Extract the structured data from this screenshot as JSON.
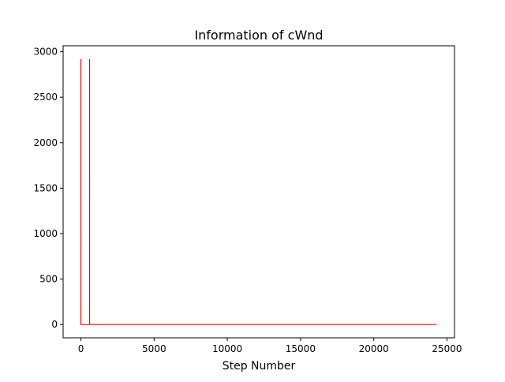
{
  "chart_data": {
    "type": "line",
    "title": "Information of cWnd",
    "xlabel": "Step Number",
    "ylabel": "",
    "xlim": [
      -1215,
      25515
    ],
    "ylim": [
      -146,
      3066
    ],
    "xticks": [
      0,
      5000,
      10000,
      15000,
      20000,
      25000
    ],
    "yticks": [
      0,
      500,
      1000,
      1500,
      2000,
      2500,
      3000
    ],
    "grid": false,
    "legend": "none",
    "series": [
      {
        "color": "#ff0000",
        "x": [
          0,
          0,
          1,
          590,
          591,
          592,
          593,
          594,
          595,
          24300
        ],
        "y": [
          2920,
          2920,
          0,
          0,
          2920,
          0,
          2920,
          0,
          0,
          0
        ]
      }
    ]
  }
}
